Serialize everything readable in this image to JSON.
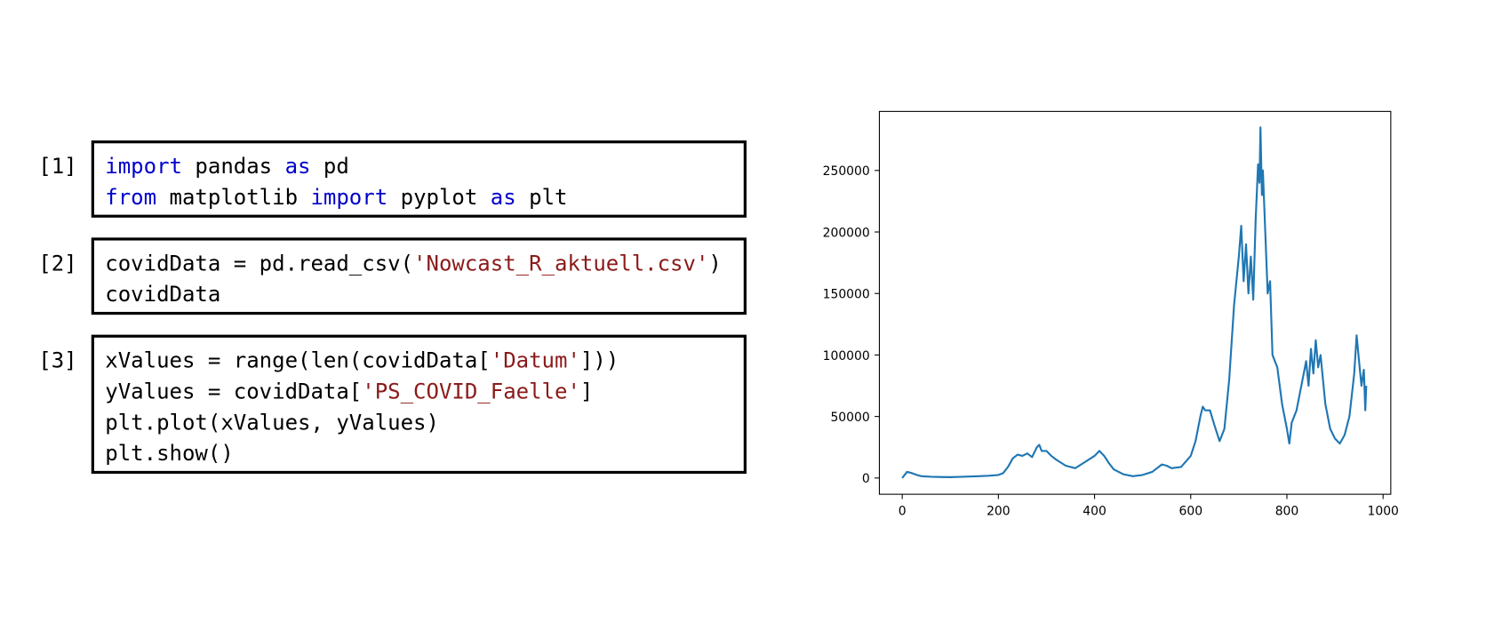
{
  "cells": [
    {
      "prompt": "[1]",
      "lines": [
        [
          {
            "text": "import",
            "color": "#0000cc"
          },
          {
            "text": " pandas ",
            "color": "#000000"
          },
          {
            "text": "as",
            "color": "#0000cc"
          },
          {
            "text": " pd",
            "color": "#000000"
          }
        ],
        [
          {
            "text": "from",
            "color": "#0000cc"
          },
          {
            "text": " matplotlib ",
            "color": "#000000"
          },
          {
            "text": "import",
            "color": "#0000cc"
          },
          {
            "text": " pyplot ",
            "color": "#000000"
          },
          {
            "text": "as",
            "color": "#0000cc"
          },
          {
            "text": " plt",
            "color": "#000000"
          }
        ]
      ]
    },
    {
      "prompt": "[2]",
      "lines": [
        [
          {
            "text": "covidData = pd.read_csv(",
            "color": "#000000"
          },
          {
            "text": "'Nowcast_R_aktuell.csv'",
            "color": "#8b1a1a"
          },
          {
            "text": ")",
            "color": "#000000"
          }
        ],
        [
          {
            "text": "covidData",
            "color": "#000000"
          }
        ]
      ]
    },
    {
      "prompt": "[3]",
      "lines": [
        [
          {
            "text": "xValues = range(len(covidData[",
            "color": "#000000"
          },
          {
            "text": "'Datum'",
            "color": "#8b1a1a"
          },
          {
            "text": "]))",
            "color": "#000000"
          }
        ],
        [
          {
            "text": "yValues = covidData[",
            "color": "#000000"
          },
          {
            "text": "'PS_COVID_Faelle'",
            "color": "#8b1a1a"
          },
          {
            "text": "]",
            "color": "#000000"
          }
        ],
        [
          {
            "text": "plt.plot(xValues, yValues)",
            "color": "#000000"
          }
        ],
        [
          {
            "text": "plt.show()",
            "color": "#000000"
          }
        ]
      ]
    }
  ],
  "chart_data": {
    "type": "line",
    "color": "#1f77b4",
    "x": [
      0,
      10,
      20,
      30,
      40,
      60,
      80,
      100,
      120,
      140,
      160,
      180,
      200,
      210,
      220,
      230,
      240,
      250,
      260,
      270,
      280,
      285,
      290,
      300,
      310,
      320,
      340,
      360,
      380,
      400,
      410,
      420,
      430,
      440,
      460,
      480,
      500,
      520,
      540,
      550,
      560,
      580,
      600,
      610,
      620,
      625,
      630,
      640,
      650,
      660,
      670,
      680,
      690,
      700,
      705,
      710,
      715,
      720,
      725,
      730,
      735,
      740,
      743,
      745,
      748,
      750,
      755,
      760,
      765,
      770,
      780,
      790,
      800,
      805,
      810,
      820,
      830,
      840,
      845,
      850,
      855,
      860,
      865,
      870,
      880,
      890,
      900,
      910,
      920,
      930,
      940,
      945,
      950,
      955,
      960,
      963,
      965
    ],
    "values": [
      0,
      5000,
      4000,
      2500,
      1500,
      1000,
      800,
      700,
      900,
      1200,
      1500,
      1800,
      2500,
      4000,
      9000,
      16000,
      19000,
      18000,
      20000,
      17000,
      25000,
      27000,
      22000,
      22000,
      18000,
      15000,
      10000,
      8000,
      13000,
      18000,
      22000,
      18000,
      12000,
      7000,
      3000,
      1500,
      2500,
      5000,
      11000,
      10000,
      8000,
      9000,
      18000,
      30000,
      50000,
      58000,
      55000,
      55000,
      42000,
      30000,
      40000,
      80000,
      140000,
      180000,
      205000,
      160000,
      190000,
      150000,
      180000,
      145000,
      210000,
      255000,
      240000,
      285000,
      230000,
      250000,
      200000,
      150000,
      160000,
      100000,
      90000,
      60000,
      40000,
      28000,
      45000,
      55000,
      75000,
      95000,
      75000,
      105000,
      85000,
      112000,
      90000,
      100000,
      60000,
      40000,
      32000,
      28000,
      35000,
      50000,
      85000,
      116000,
      95000,
      75000,
      88000,
      55000,
      75000
    ],
    "xlim": [
      -47.5,
      1016
    ],
    "ylim": [
      -13200,
      298000
    ],
    "xticks": [
      0,
      200,
      400,
      600,
      800,
      1000
    ],
    "yticks": [
      0,
      50000,
      100000,
      150000,
      200000,
      250000
    ]
  }
}
